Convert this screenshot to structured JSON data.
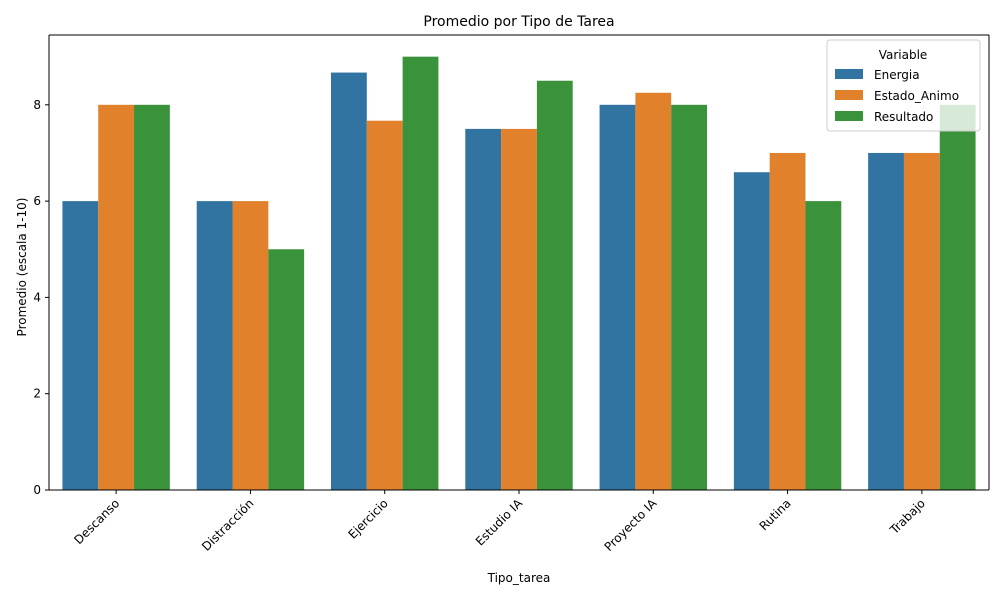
{
  "chart_data": {
    "type": "bar",
    "title": "Promedio por Tipo de Tarea",
    "xlabel": "Tipo_tarea",
    "ylabel": "Promedio (escala 1-10)",
    "ylim": [
      0,
      9.45
    ],
    "yticks": [
      0,
      2,
      4,
      6,
      8
    ],
    "categories": [
      "Descanso",
      "Distracción",
      "Ejercicio",
      "Estudio IA",
      "Proyecto IA",
      "Rutina",
      "Trabajo"
    ],
    "legend_title": "Variable",
    "legend_position": "top-right",
    "series": [
      {
        "name": "Energia",
        "color": "#3274a1",
        "values": [
          6.0,
          6.0,
          8.67,
          7.5,
          8.0,
          6.6,
          7.0
        ]
      },
      {
        "name": "Estado_Animo",
        "color": "#e1812c",
        "values": [
          8.0,
          6.0,
          7.67,
          7.5,
          8.25,
          7.0,
          7.0
        ]
      },
      {
        "name": "Resultado",
        "color": "#3a923a",
        "values": [
          8.0,
          5.0,
          9.0,
          8.5,
          8.0,
          6.0,
          8.0
        ]
      }
    ]
  }
}
